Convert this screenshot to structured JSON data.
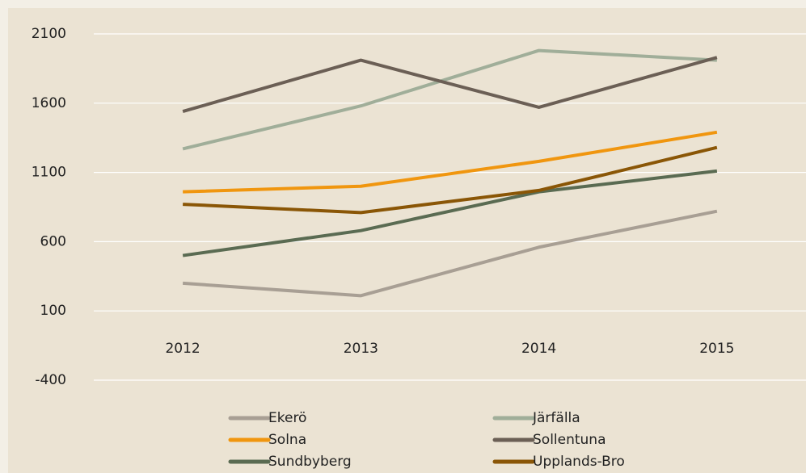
{
  "chart_data": {
    "type": "line",
    "categories": [
      "2012",
      "2013",
      "2014",
      "2015"
    ],
    "series": [
      {
        "name": "Ekerö",
        "color": "#a89f94",
        "values": [
          300,
          210,
          560,
          820
        ]
      },
      {
        "name": "Järfälla",
        "color": "#a0ae99",
        "values": [
          1270,
          1580,
          1980,
          1910
        ]
      },
      {
        "name": "Solna",
        "color": "#f0960f",
        "values": [
          960,
          1000,
          1180,
          1390
        ]
      },
      {
        "name": "Sollentuna",
        "color": "#6b5f55",
        "values": [
          1540,
          1910,
          1570,
          1930
        ]
      },
      {
        "name": "Sundbyberg",
        "color": "#5a6b52",
        "values": [
          500,
          680,
          960,
          1110
        ]
      },
      {
        "name": "Upplands-Bro",
        "color": "#8a5606",
        "values": [
          870,
          810,
          970,
          1280
        ]
      }
    ],
    "ylim": [
      -400,
      2100
    ],
    "yticks": [
      -400,
      100,
      600,
      1100,
      1600,
      2100
    ],
    "grid": true
  }
}
